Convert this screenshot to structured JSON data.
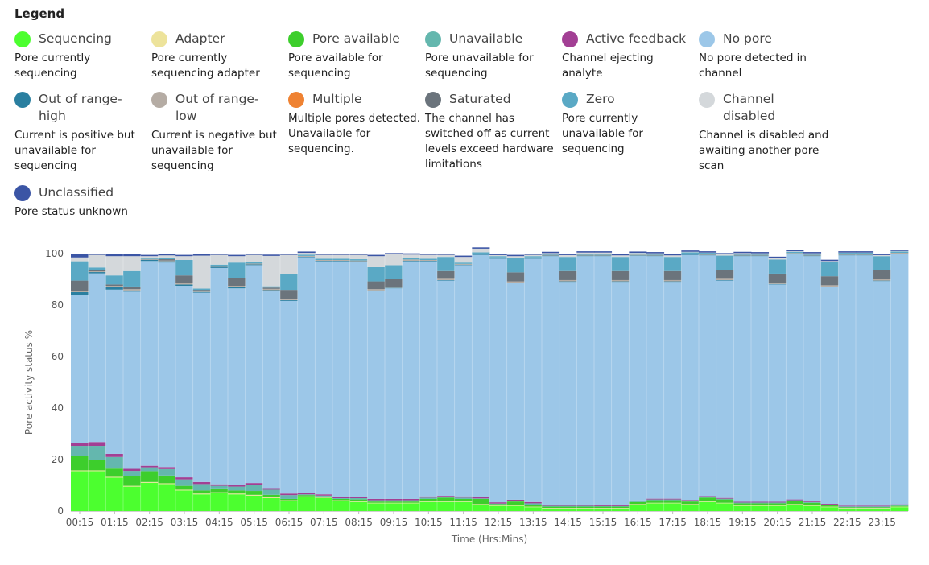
{
  "legend": {
    "title": "Legend",
    "items": [
      {
        "id": "sequencing",
        "name": "Sequencing",
        "desc": "Pore currently sequencing",
        "color": "#4cff2f"
      },
      {
        "id": "adapter",
        "name": "Adapter",
        "desc": "Pore currently sequencing adapter",
        "color": "#ede39b"
      },
      {
        "id": "pore-available",
        "name": "Pore available",
        "desc": "Pore available for sequencing",
        "color": "#3dce2c"
      },
      {
        "id": "unavailable",
        "name": "Unavailable",
        "desc": "Pore unavailable for sequencing",
        "color": "#64b7ae"
      },
      {
        "id": "active-feedback",
        "name": "Active feedback",
        "desc": "Channel ejecting analyte",
        "color": "#a23f94"
      },
      {
        "id": "no-pore",
        "name": "No pore",
        "desc": "No pore detected in channel",
        "color": "#9cc7e8"
      },
      {
        "id": "out-of-range-high",
        "name": "Out of range-high",
        "desc": "Current is positive but unavailable for sequencing",
        "color": "#2a7fa0"
      },
      {
        "id": "out-of-range-low",
        "name": "Out of range-low",
        "desc": "Current is negative but unavailable for sequencing",
        "color": "#b5aca4"
      },
      {
        "id": "multiple",
        "name": "Multiple",
        "desc": "Multiple pores detected. Unavailable for sequencing.",
        "color": "#ef8232"
      },
      {
        "id": "saturated",
        "name": "Saturated",
        "desc": "The channel has switched off as current levels exceed hardware limitations",
        "color": "#6b747c"
      },
      {
        "id": "zero",
        "name": "Zero",
        "desc": "Pore currently unavailable for sequencing",
        "color": "#5aa9c5"
      },
      {
        "id": "channel-disabled",
        "name": "Channel disabled",
        "desc": "Channel is disabled and awaiting another pore scan",
        "color": "#d4d8db"
      },
      {
        "id": "unclassified",
        "name": "Unclassified",
        "desc": "Pore status unknown",
        "color": "#3b55a5"
      }
    ]
  },
  "chart_data": {
    "type": "area",
    "stacked": true,
    "step": true,
    "xlabel": "Time (Hrs:Mins)",
    "ylabel": "Pore activity status %",
    "ylim": [
      0,
      100
    ],
    "yticks": [
      0,
      20,
      40,
      60,
      80,
      100
    ],
    "xtick_labels": [
      "00:15",
      "01:15",
      "02:15",
      "03:15",
      "04:15",
      "05:15",
      "06:15",
      "07:15",
      "08:15",
      "09:15",
      "10:15",
      "11:15",
      "12:15",
      "13:15",
      "14:15",
      "15:15",
      "16:15",
      "17:15",
      "18:15",
      "19:15",
      "20:15",
      "21:15",
      "22:15",
      "23:15"
    ],
    "grid": false,
    "x": [
      "00:15",
      "00:45",
      "01:15",
      "01:45",
      "02:15",
      "02:45",
      "03:15",
      "03:45",
      "04:15",
      "04:45",
      "05:15",
      "05:45",
      "06:15",
      "06:45",
      "07:15",
      "07:45",
      "08:15",
      "08:45",
      "09:15",
      "09:45",
      "10:15",
      "10:45",
      "11:15",
      "11:45",
      "12:15",
      "12:45",
      "13:15",
      "13:45",
      "14:15",
      "14:45",
      "15:15",
      "15:45",
      "16:15",
      "16:45",
      "17:15",
      "17:45",
      "18:15",
      "18:45",
      "19:15",
      "19:45",
      "20:15",
      "20:45",
      "21:15",
      "21:45",
      "22:15",
      "22:45",
      "23:15",
      "23:45"
    ],
    "series": [
      {
        "name": "Sequencing",
        "color": "#4cff2f",
        "values": [
          15.5,
          15.5,
          13,
          9.5,
          11,
          10.5,
          8,
          6.5,
          7,
          6.5,
          6,
          5,
          4,
          5.5,
          5,
          4,
          3.5,
          3,
          3,
          3,
          3.5,
          3.5,
          3.5,
          2.5,
          2,
          2,
          1.5,
          1,
          1,
          1,
          1,
          1,
          2.5,
          3,
          3,
          2.5,
          3.5,
          3,
          2,
          2,
          2,
          2.5,
          2,
          1.5,
          1,
          1,
          1,
          1.5
        ]
      },
      {
        "name": "Adapter",
        "color": "#ede39b",
        "values": [
          0.3,
          0.3,
          0.3,
          0.3,
          0.3,
          0.3,
          0.3,
          0.3,
          0.3,
          0.3,
          0.3,
          0.3,
          0.2,
          0.2,
          0.2,
          0.2,
          0.2,
          0.2,
          0.2,
          0.2,
          0.2,
          0.2,
          0.2,
          0.2,
          0.2,
          0.2,
          0.2,
          0.2,
          0.2,
          0.2,
          0.2,
          0.2,
          0.2,
          0.2,
          0.2,
          0.2,
          0.2,
          0.2,
          0.2,
          0.2,
          0.2,
          0.2,
          0.2,
          0.2,
          0.2,
          0.2,
          0.2,
          0.2
        ]
      },
      {
        "name": "Pore available",
        "color": "#3dce2c",
        "values": [
          5.5,
          4,
          3.2,
          3.8,
          4.2,
          3,
          1.5,
          1.2,
          1.5,
          1.2,
          1.5,
          1,
          0.5,
          0.5,
          0.5,
          0.5,
          0.8,
          0.5,
          0.5,
          0.5,
          1,
          1.5,
          1,
          2,
          0.5,
          1.5,
          0.8,
          0.5,
          0.5,
          0.5,
          0.5,
          0.5,
          0.8,
          1,
          1,
          1,
          1.5,
          1.3,
          0.8,
          0.8,
          0.8,
          1.2,
          1,
          0.5,
          0.3,
          0.3,
          0.3,
          0.3
        ]
      },
      {
        "name": "Unavailable",
        "color": "#64b7ae",
        "values": [
          4,
          5.5,
          4.5,
          2,
          1.5,
          2.5,
          2.5,
          2.5,
          1,
          1.5,
          2.5,
          2,
          1.5,
          0.3,
          0.3,
          0.3,
          0.5,
          0.5,
          0.5,
          0.5,
          0.5,
          0.2,
          0.5,
          0.2,
          0.2,
          0.2,
          0.5,
          0.3,
          0.3,
          0.3,
          0.2,
          0.2,
          0.3,
          0.3,
          0.3,
          0.3,
          0.3,
          0.3,
          0.3,
          0.3,
          0.3,
          0.3,
          0.3,
          0.3,
          0.3,
          0.3,
          0.3,
          0.3
        ]
      },
      {
        "name": "Active feedback",
        "color": "#a23f94",
        "values": [
          1.2,
          1.5,
          1.2,
          0.8,
          0.6,
          0.8,
          0.8,
          0.8,
          0.6,
          0.6,
          0.6,
          0.6,
          0.6,
          0.6,
          0.5,
          0.5,
          0.5,
          0.5,
          0.5,
          0.5,
          0.5,
          0.5,
          0.5,
          0.5,
          0.5,
          0.5,
          0.5,
          0.3,
          0.3,
          0.3,
          0.3,
          0.3,
          0.3,
          0.3,
          0.3,
          0.3,
          0.3,
          0.3,
          0.3,
          0.3,
          0.3,
          0.3,
          0.3,
          0.3,
          0.3,
          0.3,
          0.3,
          0.3
        ]
      },
      {
        "name": "No pore",
        "color": "#9cc7e8",
        "values": [
          57.5,
          65.5,
          63.8,
          68.8,
          79.5,
          79.4,
          74.4,
          73.5,
          84,
          76.4,
          84.6,
          76.6,
          74.8,
          91.5,
          90.5,
          91.5,
          91.3,
          80.8,
          81.8,
          92.3,
          91.3,
          83.6,
          89.8,
          94.1,
          94.6,
          84.1,
          94.5,
          96.7,
          86.7,
          96.7,
          96.8,
          86.8,
          95,
          94.2,
          84.2,
          95.2,
          93.5,
          84.4,
          95.4,
          95.4,
          84.4,
          95.2,
          95.2,
          84.2,
          97.2,
          97.2,
          87.2,
          97.2
        ]
      },
      {
        "name": "Out of range-high",
        "color": "#2a7fa0",
        "values": [
          1,
          0.5,
          1,
          0.5,
          0.5,
          0.5,
          0.5,
          0.3,
          0.5,
          0.5,
          0.3,
          0.3,
          0.3,
          0.2,
          0.2,
          0.2,
          0.2,
          0.2,
          0.2,
          0.2,
          0.2,
          0.2,
          0.2,
          0.2,
          0.2,
          0.2,
          0.2,
          0.2,
          0.2,
          0.2,
          0.2,
          0.2,
          0.2,
          0.2,
          0.2,
          0.2,
          0.2,
          0.2,
          0.2,
          0.2,
          0.2,
          0.2,
          0.2,
          0.2,
          0.2,
          0.2,
          0.2,
          0.2
        ]
      },
      {
        "name": "Out of range-low",
        "color": "#b5aca4",
        "values": [
          0.5,
          0.3,
          0.5,
          0.5,
          0.3,
          0.3,
          0.5,
          0.3,
          0.3,
          0.5,
          0.3,
          0.5,
          0.5,
          0.3,
          0.3,
          0.3,
          0.3,
          0.5,
          0.3,
          0.5,
          0.3,
          0.5,
          0.3,
          0.3,
          0.3,
          0.5,
          0.3,
          0.3,
          0.5,
          0.3,
          0.3,
          0.5,
          0.3,
          0.3,
          0.5,
          0.3,
          0.3,
          0.5,
          0.3,
          0.3,
          0.5,
          0.3,
          0.3,
          0.5,
          0.3,
          0.3,
          0.5,
          0.3
        ]
      },
      {
        "name": "Multiple",
        "color": "#ef8232",
        "values": [
          0,
          0,
          0,
          0,
          0,
          0,
          0,
          0,
          0,
          0,
          0,
          0,
          0,
          0,
          0,
          0,
          0,
          0,
          0,
          0,
          0,
          0,
          0,
          0,
          0,
          0,
          0,
          0,
          0,
          0,
          0,
          0,
          0,
          0,
          0,
          0,
          0,
          0,
          0,
          0,
          0,
          0,
          0,
          0,
          0,
          0,
          0,
          0
        ]
      },
      {
        "name": "Saturated",
        "color": "#6b747c",
        "values": [
          4,
          0.5,
          0.5,
          1,
          0,
          0.5,
          3,
          0.5,
          0,
          3,
          0,
          0.5,
          3.5,
          0,
          0,
          0,
          0,
          3,
          3,
          0,
          0,
          3,
          0,
          0,
          0,
          3.5,
          0,
          0,
          3.5,
          0,
          0,
          3.5,
          0,
          0,
          3.5,
          0,
          0,
          3.5,
          0,
          0,
          3.5,
          0,
          0,
          3.5,
          0,
          0,
          3.5,
          0
        ]
      },
      {
        "name": "Zero",
        "color": "#5aa9c5",
        "values": [
          7.5,
          1,
          3.5,
          6,
          0.5,
          0.5,
          6,
          0.5,
          0.5,
          6,
          0.5,
          0.5,
          6,
          0.5,
          0.5,
          0.5,
          0.5,
          5.5,
          5.5,
          0.5,
          0.5,
          5.5,
          0.5,
          0.5,
          0.5,
          5.5,
          0.5,
          0.5,
          5.5,
          0.5,
          0.5,
          5.5,
          0.5,
          0.5,
          5.5,
          0.5,
          0.5,
          5.5,
          0.5,
          0.5,
          5.5,
          0.5,
          0.5,
          5.5,
          0.5,
          0.5,
          5.5,
          0.5
        ]
      },
      {
        "name": "Channel disabled",
        "color": "#d4d8db",
        "values": [
          1.5,
          4.9,
          7.5,
          5.8,
          0.6,
          1,
          1.5,
          12.8,
          3.8,
          2.5,
          2.9,
          11.8,
          7.6,
          0.7,
          1.5,
          1.5,
          1.7,
          4.3,
          4.2,
          1.4,
          1.5,
          0.8,
          2.2,
          1.4,
          0.4,
          0.8,
          0.5,
          0.2,
          0.7,
          0.4,
          0.4,
          0.6,
          0.2,
          0.1,
          0.6,
          0.2,
          0.1,
          0.5,
          0.2,
          0.1,
          0.6,
          0.2,
          0.1,
          0.4,
          0.1,
          0.1,
          0.4,
          0.2
        ]
      },
      {
        "name": "Unclassified",
        "color": "#3b55a5",
        "values": [
          1.5,
          0.5,
          1,
          1,
          0.5,
          0.5,
          0.5,
          0.5,
          0.5,
          0.5,
          0.5,
          0.5,
          0.5,
          0.5,
          0.5,
          0.5,
          0.5,
          0.5,
          0.5,
          0.5,
          0.5,
          0.5,
          0.5,
          0.5,
          0.5,
          0.5,
          0.5,
          0.5,
          0.5,
          0.5,
          0.5,
          0.5,
          0.5,
          0.5,
          0.5,
          0.5,
          0.5,
          0.5,
          0.5,
          0.5,
          0.5,
          0.5,
          0.5,
          0.5,
          0.5,
          0.5,
          0.5,
          0.5
        ]
      }
    ]
  }
}
